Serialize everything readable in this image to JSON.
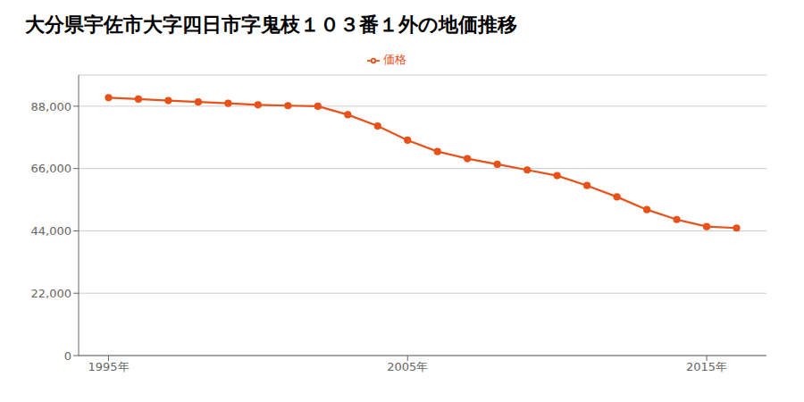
{
  "chart_data": {
    "type": "line",
    "title": "大分県宇佐市大字四日市字鬼枝１０３番１外の地価推移",
    "x": [
      1995,
      1996,
      1997,
      1998,
      1999,
      2000,
      2001,
      2002,
      2003,
      2004,
      2005,
      2006,
      2007,
      2008,
      2009,
      2010,
      2011,
      2012,
      2013,
      2014,
      2015,
      2016
    ],
    "series": [
      {
        "name": "価格",
        "color": "#e8511a",
        "values": [
          91000,
          90500,
          90000,
          89500,
          89000,
          88500,
          88200,
          88000,
          85000,
          81000,
          76000,
          72000,
          69500,
          67500,
          65500,
          63500,
          60000,
          56000,
          51500,
          48000,
          45500,
          45000
        ]
      }
    ],
    "xlim": [
      1994,
      2017
    ],
    "xticks": [
      {
        "value": 1995,
        "label": "1995年"
      },
      {
        "value": 2005,
        "label": "2005年"
      },
      {
        "value": 2015,
        "label": "2015年"
      }
    ],
    "ylim": [
      0,
      99000
    ],
    "yticks": [
      0,
      {
        "value": 22000,
        "label": "22,000"
      },
      {
        "value": 44000,
        "label": "44,000"
      },
      {
        "value": 66000,
        "label": "66,000"
      },
      {
        "value": 88000,
        "label": "88,000"
      }
    ],
    "grid": "y",
    "marker": "circle",
    "legend": "top"
  }
}
